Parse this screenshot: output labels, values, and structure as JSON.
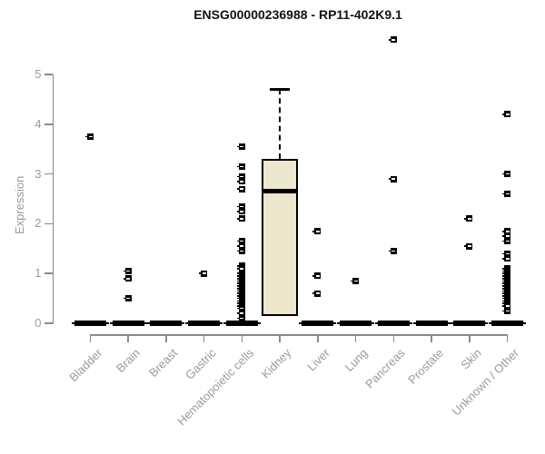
{
  "chart_data": {
    "type": "boxplot",
    "title": "ENSG00000236988 - RP11-402K9.1",
    "ylabel": "Expression",
    "xlabel": "",
    "ylim": [
      0,
      5
    ],
    "yticks": [
      0,
      1,
      2,
      3,
      4,
      5
    ],
    "grid": false,
    "legend": "none",
    "box_fill_color": "#ece7cd",
    "box_border_color": "#000000",
    "axis_color": "#8a8a8a",
    "label_color": "#9a9a9a",
    "categories": [
      "Bladder",
      "Brain",
      "Breast",
      "Gastric",
      "Hematopoietic cells",
      "Kidney",
      "Liver",
      "Lung",
      "Pancreas",
      "Prostate",
      "Skin",
      "Unknown / Other"
    ],
    "series": [
      {
        "name": "Bladder",
        "q1": 0,
        "median": 0,
        "q3": 0,
        "whisker_low": 0,
        "whisker_high": 0,
        "outliers": [
          3.75
        ]
      },
      {
        "name": "Brain",
        "q1": 0,
        "median": 0,
        "q3": 0,
        "whisker_low": 0,
        "whisker_high": 0,
        "outliers": [
          1.05,
          0.9,
          0.5
        ]
      },
      {
        "name": "Breast",
        "q1": 0,
        "median": 0,
        "q3": 0,
        "whisker_low": 0,
        "whisker_high": 0,
        "outliers": []
      },
      {
        "name": "Gastric",
        "q1": 0,
        "median": 0,
        "q3": 0,
        "whisker_low": 0,
        "whisker_high": 0,
        "outliers": [
          1.0
        ]
      },
      {
        "name": "Hematopoietic cells",
        "q1": 0,
        "median": 0,
        "q3": 0,
        "whisker_low": 0,
        "whisker_high": 0,
        "outliers": [
          3.55,
          3.15,
          2.95,
          2.85,
          2.7,
          2.35,
          2.25,
          2.1,
          1.65,
          1.55,
          1.45,
          1.15,
          1.1,
          1.0,
          0.95,
          0.9,
          0.85,
          0.8,
          0.75,
          0.7,
          0.65,
          0.6,
          0.55,
          0.5,
          0.45,
          0.4,
          0.35,
          0.3,
          0.2,
          0.1
        ]
      },
      {
        "name": "Kidney",
        "q1": 0.15,
        "median": 2.65,
        "q3": 3.3,
        "whisker_low": 0.15,
        "whisker_high": 4.7,
        "outliers": []
      },
      {
        "name": "Liver",
        "q1": 0,
        "median": 0,
        "q3": 0,
        "whisker_low": 0,
        "whisker_high": 0,
        "outliers": [
          1.85,
          0.95,
          0.6
        ]
      },
      {
        "name": "Lung",
        "q1": 0,
        "median": 0,
        "q3": 0,
        "whisker_low": 0,
        "whisker_high": 0,
        "outliers": [
          0.85
        ]
      },
      {
        "name": "Pancreas",
        "q1": 0,
        "median": 0,
        "q3": 0,
        "whisker_low": 0,
        "whisker_high": 0,
        "outliers": [
          5.7,
          2.9,
          1.45
        ]
      },
      {
        "name": "Prostate",
        "q1": 0,
        "median": 0,
        "q3": 0,
        "whisker_low": 0,
        "whisker_high": 0,
        "outliers": []
      },
      {
        "name": "Skin",
        "q1": 0,
        "median": 0,
        "q3": 0,
        "whisker_low": 0,
        "whisker_high": 0,
        "outliers": [
          2.1,
          1.55
        ]
      },
      {
        "name": "Unknown / Other",
        "q1": 0,
        "median": 0,
        "q3": 0,
        "whisker_low": 0,
        "whisker_high": 0,
        "outliers": [
          4.2,
          3.0,
          2.6,
          1.85,
          1.75,
          1.65,
          1.4,
          1.3,
          1.1,
          1.05,
          1.0,
          0.95,
          0.9,
          0.85,
          0.8,
          0.75,
          0.7,
          0.65,
          0.6,
          0.55,
          0.5,
          0.45,
          0.4,
          0.35,
          0.25
        ]
      }
    ]
  }
}
